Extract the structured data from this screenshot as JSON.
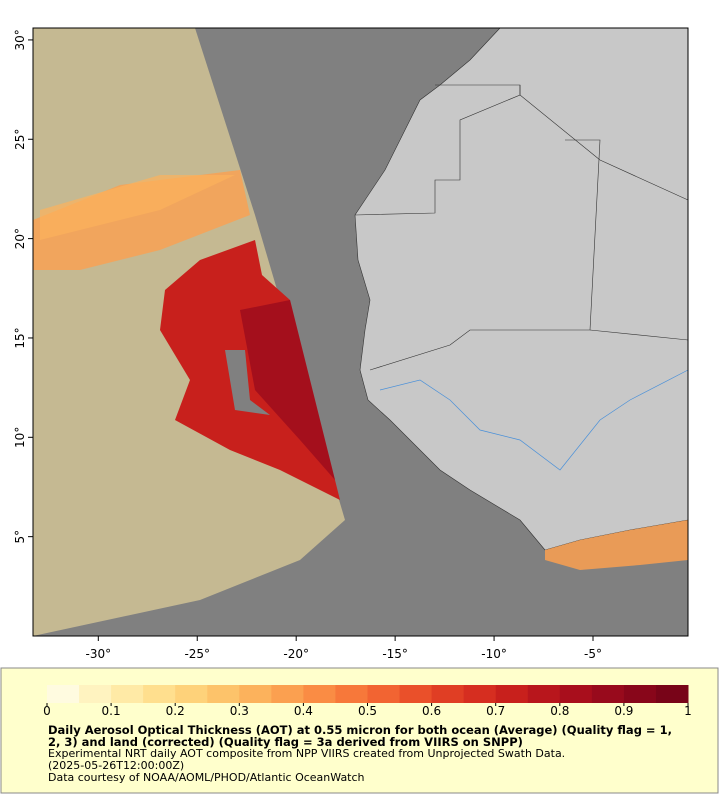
{
  "map": {
    "lonlim": [
      -33.3,
      -0.2
    ],
    "latlim": [
      0,
      30.6
    ],
    "lon_ticks": [
      {
        "value": -30,
        "label": "-30°"
      },
      {
        "value": -25,
        "label": "-25°"
      },
      {
        "value": -20,
        "label": "-20°"
      },
      {
        "value": -15,
        "label": "-15°"
      },
      {
        "value": -10,
        "label": "-10°"
      },
      {
        "value": -5,
        "label": "-5°"
      }
    ],
    "lat_ticks": [
      {
        "value": 5,
        "label": "5°"
      },
      {
        "value": 10,
        "label": "10°"
      },
      {
        "value": 15,
        "label": "15°"
      },
      {
        "value": 20,
        "label": "20°"
      },
      {
        "value": 25,
        "label": "25°"
      },
      {
        "value": 30,
        "label": "30°"
      }
    ]
  },
  "colorbar": {
    "range": [
      0,
      1
    ],
    "ticks": [
      0,
      0.1,
      0.2,
      0.3,
      0.4,
      0.5,
      0.6,
      0.7,
      0.8,
      0.9,
      1
    ],
    "colors": [
      "#fffbe0",
      "#fff3c0",
      "#ffeaa6",
      "#ffdf8e",
      "#fed27a",
      "#fdc36a",
      "#fcb25c",
      "#fba050",
      "#fa8c44",
      "#f7783a",
      "#f26432",
      "#ea502a",
      "#e03e24",
      "#d62e20",
      "#c8201c",
      "#b8161c",
      "#a80e1c",
      "#980a1c",
      "#88061a",
      "#780418"
    ]
  },
  "caption": {
    "title": "Daily Aerosol Optical Thickness (AOT) at 0.55 micron for both ocean (Average) (Quality flag = 1, 2, 3) and land (corrected) (Quality flag = 3a derived from VIIRS on SNPP)",
    "lines": [
      "Experimental NRT daily AOT composite from NPP VIIRS created from Unprojected Swath Data.",
      "(2025-05-26T12:00:00Z)",
      "Data courtesy of NOAA/AOML/PHOD/Atlantic OceanWatch"
    ]
  }
}
